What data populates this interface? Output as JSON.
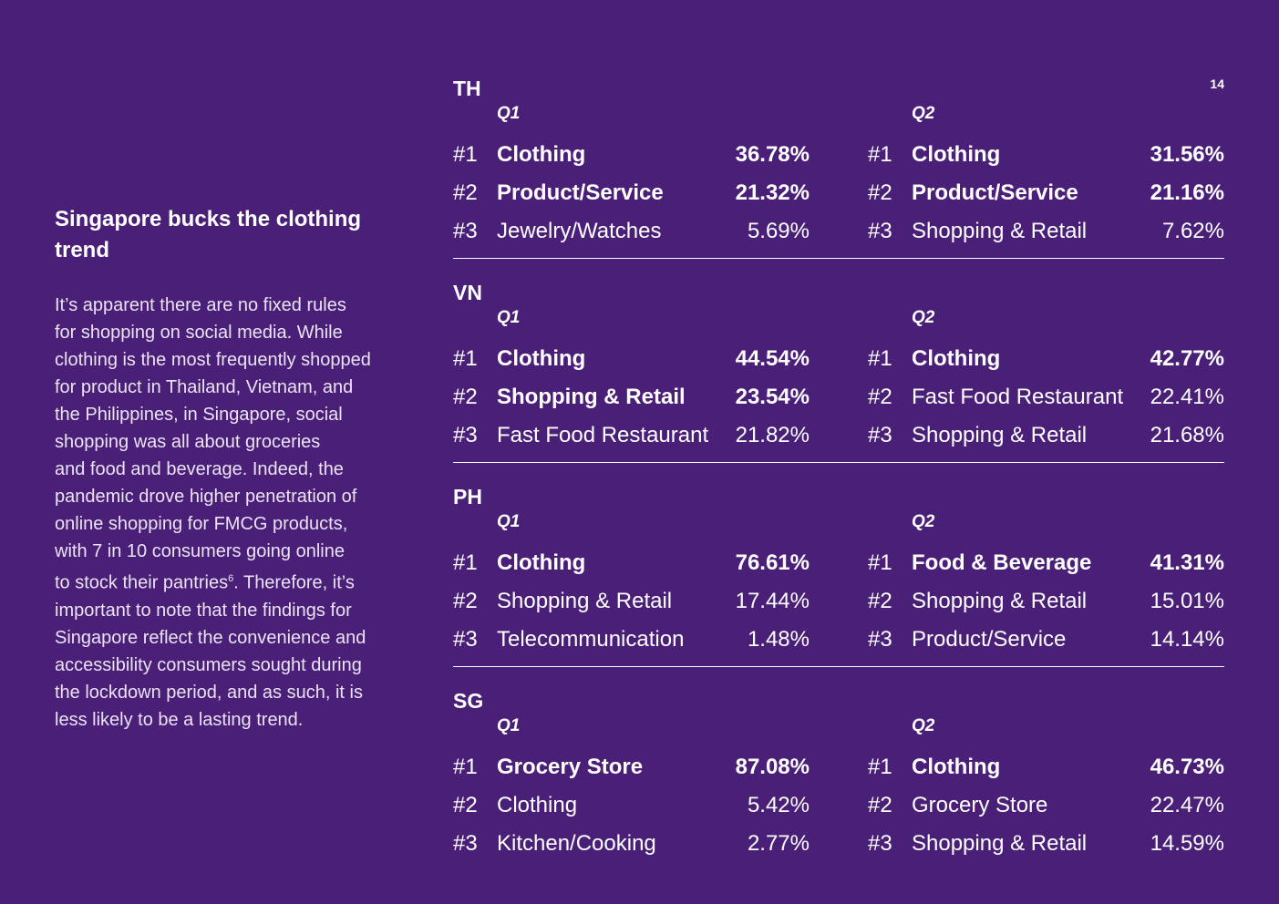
{
  "page_number": "14",
  "sidebar": {
    "title": "Singapore bucks the clothing trend",
    "lines": [
      {
        "text": "It’s apparent there are no fixed rules"
      },
      {
        "text": "for shopping on social media. While"
      },
      {
        "text": "clothing is the most frequently shopped"
      },
      {
        "text": "for product in Thailand, Vietnam, and"
      },
      {
        "text": "the Philippines, in Singapore, social"
      },
      {
        "text": "shopping was all about groceries"
      },
      {
        "text": "and food and beverage. Indeed, the"
      },
      {
        "text": "pandemic drove higher penetration of"
      },
      {
        "text": "online shopping for FMCG products,"
      },
      {
        "text": "with 7 in 10 consumers going online"
      },
      {
        "text": "to stock their pantries",
        "sup": "6",
        "after": ". Therefore, it’s"
      },
      {
        "text": "important to note that the findings for"
      },
      {
        "text": "Singapore reflect the convenience and"
      },
      {
        "text": "accessibility consumers sought during"
      },
      {
        "text": "the lockdown period, and as such, it is"
      },
      {
        "text": "less likely to be a lasting trend."
      }
    ]
  },
  "countries": [
    {
      "code": "TH",
      "quarters": [
        {
          "label": "Q1",
          "rows": [
            {
              "rank": "#1",
              "name": "Clothing",
              "value": "36.78%",
              "bold": true
            },
            {
              "rank": "#2",
              "name": "Product/Service",
              "value": "21.32%",
              "bold": true
            },
            {
              "rank": "#3",
              "name": "Jewelry/Watches",
              "value": "5.69%",
              "bold": false
            }
          ]
        },
        {
          "label": "Q2",
          "rows": [
            {
              "rank": "#1",
              "name": "Clothing",
              "value": "31.56%",
              "bold": true
            },
            {
              "rank": "#2",
              "name": "Product/Service",
              "value": "21.16%",
              "bold": true
            },
            {
              "rank": "#3",
              "name": "Shopping & Retail",
              "value": "7.62%",
              "bold": false
            }
          ]
        }
      ]
    },
    {
      "code": "VN",
      "quarters": [
        {
          "label": "Q1",
          "rows": [
            {
              "rank": "#1",
              "name": "Clothing",
              "value": "44.54%",
              "bold": true
            },
            {
              "rank": "#2",
              "name": "Shopping & Retail",
              "value": "23.54%",
              "bold": true
            },
            {
              "rank": "#3",
              "name": "Fast Food Restaurant",
              "value": "21.82%",
              "bold": false
            }
          ]
        },
        {
          "label": "Q2",
          "rows": [
            {
              "rank": "#1",
              "name": "Clothing",
              "value": "42.77%",
              "bold": true
            },
            {
              "rank": "#2",
              "name": "Fast Food Restaurant",
              "value": "22.41%",
              "bold": false
            },
            {
              "rank": "#3",
              "name": "Shopping & Retail",
              "value": "21.68%",
              "bold": false
            }
          ]
        }
      ]
    },
    {
      "code": "PH",
      "quarters": [
        {
          "label": "Q1",
          "rows": [
            {
              "rank": "#1",
              "name": "Clothing",
              "value": "76.61%",
              "bold": true
            },
            {
              "rank": "#2",
              "name": "Shopping & Retail",
              "value": "17.44%",
              "bold": false
            },
            {
              "rank": "#3",
              "name": "Telecommunication",
              "value": "1.48%",
              "bold": false
            }
          ]
        },
        {
          "label": "Q2",
          "rows": [
            {
              "rank": "#1",
              "name": "Food & Beverage",
              "value": "41.31%",
              "bold": true
            },
            {
              "rank": "#2",
              "name": "Shopping & Retail",
              "value": "15.01%",
              "bold": false
            },
            {
              "rank": "#3",
              "name": "Product/Service",
              "value": "14.14%",
              "bold": false
            }
          ]
        }
      ]
    },
    {
      "code": "SG",
      "quarters": [
        {
          "label": "Q1",
          "rows": [
            {
              "rank": "#1",
              "name": "Grocery Store",
              "value": "87.08%",
              "bold": true
            },
            {
              "rank": "#2",
              "name": "Clothing",
              "value": "5.42%",
              "bold": false
            },
            {
              "rank": "#3",
              "name": "Kitchen/Cooking",
              "value": "2.77%",
              "bold": false
            }
          ]
        },
        {
          "label": "Q2",
          "rows": [
            {
              "rank": "#1",
              "name": "Clothing",
              "value": "46.73%",
              "bold": true
            },
            {
              "rank": "#2",
              "name": "Grocery Store",
              "value": "22.47%",
              "bold": false
            },
            {
              "rank": "#3",
              "name": "Shopping & Retail",
              "value": "14.59%",
              "bold": false
            }
          ]
        }
      ]
    }
  ]
}
